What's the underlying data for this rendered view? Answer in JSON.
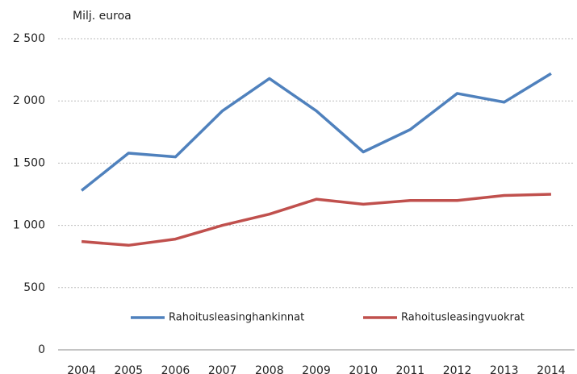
{
  "chart_data": {
    "type": "line",
    "y_axis_label": "Milj. euroa",
    "categories": [
      "2004",
      "2005",
      "2006",
      "2007",
      "2008",
      "2009",
      "2010",
      "2011",
      "2012",
      "2013",
      "2014"
    ],
    "series": [
      {
        "name": "Rahoitusleasinghankinnat",
        "color": "#4f81bd",
        "values": [
          1280,
          1580,
          1550,
          1920,
          2180,
          1920,
          1590,
          1770,
          2060,
          1990,
          2220
        ]
      },
      {
        "name": "Rahoitusleasingvuokrat",
        "color": "#c0504d",
        "values": [
          870,
          840,
          890,
          1000,
          1090,
          1210,
          1170,
          1200,
          1200,
          1240,
          1250
        ]
      }
    ],
    "ylim": [
      0,
      2500
    ],
    "yticks": [
      0,
      500,
      {
        "value": 1000,
        "label": "1 000"
      },
      {
        "value": 1500,
        "label": "1 500"
      },
      {
        "value": 2000,
        "label": "2 000"
      },
      {
        "value": 2500,
        "label": "2 500"
      }
    ],
    "grid": true,
    "legend": "bottom"
  }
}
